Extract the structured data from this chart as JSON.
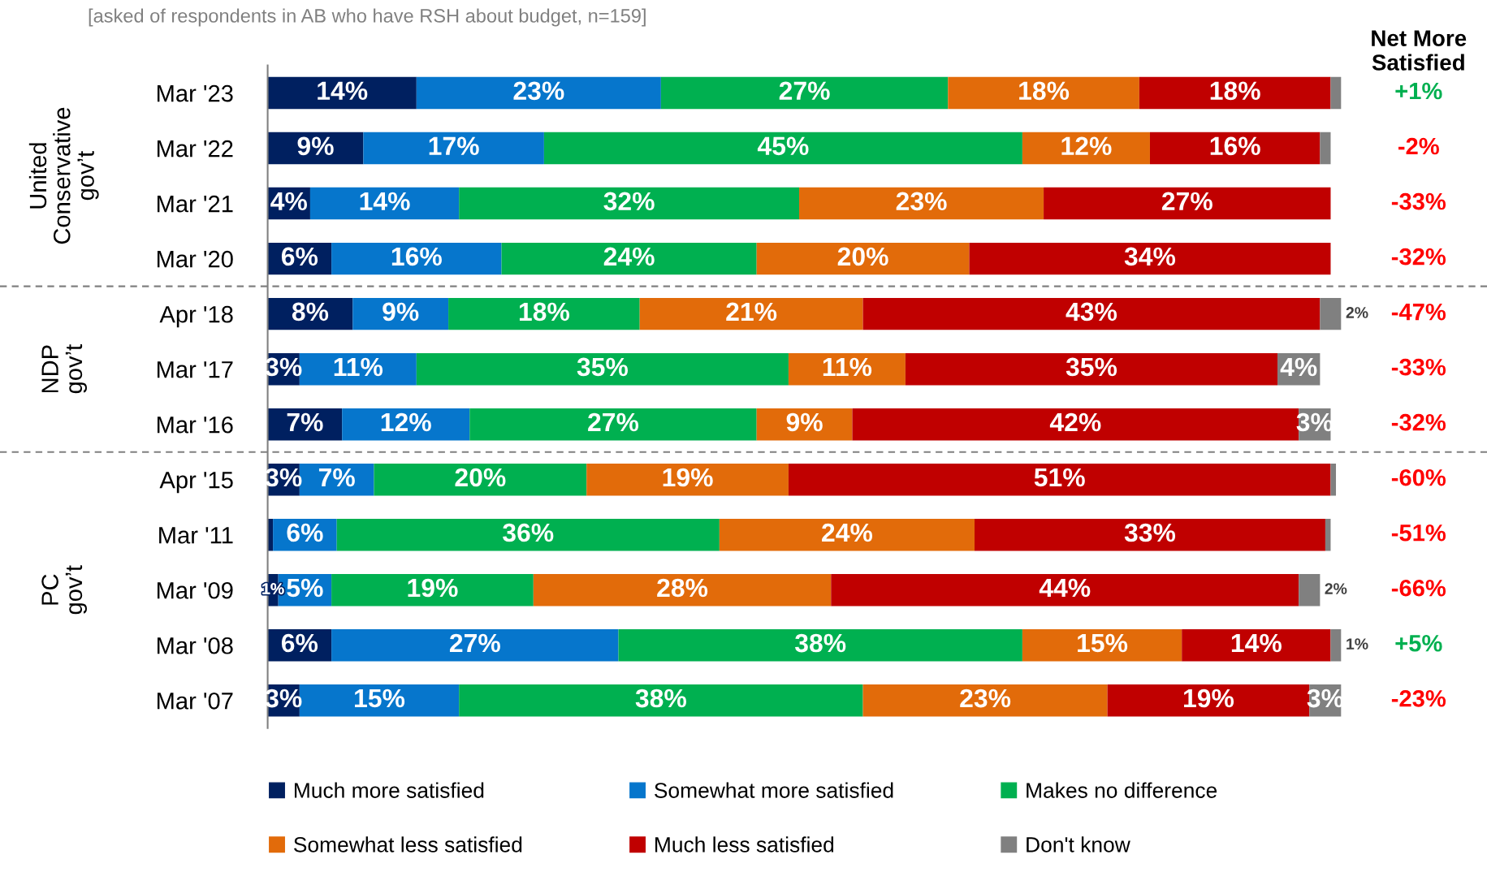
{
  "chart_data": {
    "type": "bar",
    "orientation": "horizontal",
    "stacked": true,
    "subtitle": "[asked of respondents in AB who have RSH about budget, n=159]",
    "categories": [
      "Mar '23",
      "Mar '22",
      "Mar '21",
      "Mar '20",
      "Apr '18",
      "Mar '17",
      "Mar '16",
      "Apr '15",
      "Mar '11",
      "Mar '09",
      "Mar '08",
      "Mar '07"
    ],
    "series": [
      {
        "name": "Much more satisfied",
        "color": "#002060",
        "values": [
          14,
          9,
          4,
          6,
          8,
          3,
          7,
          3,
          0.5,
          1,
          6,
          3
        ],
        "value_labels": [
          "14%",
          "9%",
          "4%",
          "6%",
          "8%",
          "3%",
          "7%",
          "3%",
          null,
          "1%",
          "6%",
          "3%"
        ]
      },
      {
        "name": "Somewhat more satisfied",
        "color": "#0676CC",
        "values": [
          23,
          17,
          14,
          16,
          9,
          11,
          12,
          7,
          6,
          5,
          27,
          15
        ],
        "value_labels": [
          "23%",
          "17%",
          "14%",
          "16%",
          "9%",
          "11%",
          "12%",
          "7%",
          "6%",
          "5%",
          "27%",
          "15%"
        ]
      },
      {
        "name": "Makes no difference",
        "color": "#00B050",
        "values": [
          27,
          45,
          32,
          24,
          18,
          35,
          27,
          20,
          36,
          19,
          38,
          38
        ],
        "value_labels": [
          "27%",
          "45%",
          "32%",
          "24%",
          "18%",
          "35%",
          "27%",
          "20%",
          "36%",
          "19%",
          "38%",
          "38%"
        ]
      },
      {
        "name": "Somewhat less satisfied",
        "color": "#E26B0A",
        "values": [
          18,
          12,
          23,
          20,
          21,
          11,
          9,
          19,
          24,
          28,
          15,
          23
        ],
        "value_labels": [
          "18%",
          "12%",
          "23%",
          "20%",
          "21%",
          "11%",
          "9%",
          "19%",
          "24%",
          "28%",
          "15%",
          "23%"
        ]
      },
      {
        "name": "Much less satisfied",
        "color": "#C00000",
        "values": [
          18,
          16,
          27,
          34,
          43,
          35,
          42,
          51,
          33,
          44,
          14,
          19
        ],
        "value_labels": [
          "18%",
          "16%",
          "27%",
          "34%",
          "43%",
          "35%",
          "42%",
          "51%",
          "33%",
          "44%",
          "14%",
          "19%"
        ]
      },
      {
        "name": "Don't know",
        "color": "#808080",
        "values": [
          1,
          1,
          0,
          0,
          2,
          4,
          3,
          0.5,
          0.5,
          2,
          1,
          3
        ],
        "value_labels": [
          null,
          null,
          null,
          null,
          "2%",
          "4%",
          "3%",
          null,
          null,
          "2%",
          "1%",
          "3%"
        ]
      }
    ],
    "annotations": [
      "Net More Satisfied",
      "+1%",
      "-2%",
      "-33%",
      "-32%",
      "-47%",
      "-33%",
      "-32%",
      "-60%",
      "-51%",
      "-66%",
      "+5%",
      "-23%",
      "United\nConservative\ngov’t",
      "NDP\ngov’t",
      "PC\ngov’t"
    ],
    "legend": "bottom",
    "tick_labels": "y",
    "grid": false
  }
}
